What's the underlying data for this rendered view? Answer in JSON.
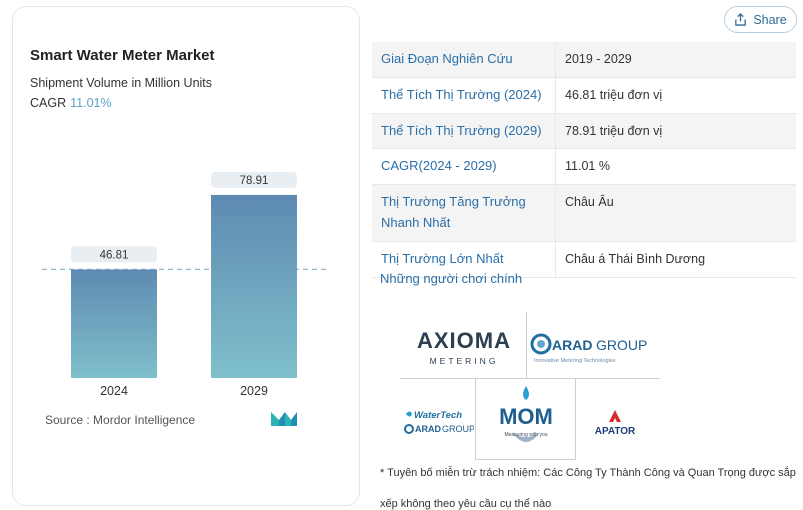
{
  "share": {
    "label": "Share",
    "icon": "share-icon"
  },
  "chart": {
    "title": "Smart Water Meter Market",
    "subtitle": "Shipment Volume in Million Units",
    "cagr_label": "CAGR",
    "cagr_value": "11.01%",
    "source": "Source : Mordor Intelligence",
    "bar_color_top": "#5e8ab1",
    "bar_color_bottom": "#7fc0cc"
  },
  "chart_data": {
    "type": "bar",
    "categories": [
      "2024",
      "2029"
    ],
    "values": [
      46.81,
      78.91
    ],
    "title": "Smart Water Meter Market",
    "subtitle": "Shipment Volume in Million Units",
    "xlabel": "",
    "ylabel": "",
    "ylim": [
      0,
      100
    ],
    "grid": false,
    "reference_line": 46.81
  },
  "info": {
    "rows": [
      {
        "key": "Giai Đoạn Nghiên Cứu",
        "value": "2019 - 2029"
      },
      {
        "key": "Thể Tích Thị Trường (2024)",
        "value": "46.81 triệu đơn vị"
      },
      {
        "key": "Thể Tích Thị Trường (2029)",
        "value": "78.91 triệu đơn vị"
      },
      {
        "key": "CAGR(2024 - 2029)",
        "value": "11.01 %"
      },
      {
        "key": "Thị Trường Tăng Trưởng Nhanh Nhất",
        "value": "Châu Âu"
      },
      {
        "key": "Thị Trường Lớn Nhất",
        "value": "Châu á Thái Bình Dương"
      }
    ],
    "key_players_label": "Những người chơi chính"
  },
  "players": {
    "axioma": {
      "name": "AXIOMA",
      "sub": "METERING"
    },
    "arad": {
      "name": "ARAD",
      "suffix": "GROUP",
      "tagline": "Innovative Metering Technologies"
    },
    "watertech": {
      "name": "WaterTech",
      "sub_a": "ARAD",
      "sub_b": "GROUP"
    },
    "mom": {
      "name": "MOM",
      "tagline": "Measuring with you"
    },
    "apator": {
      "name": "APATOR"
    }
  },
  "disclaimer": "* Tuyên bố miễn trừ trách nhiệm: Các Công Ty Thành Công và Quan Trọng được sắp xếp không theo yêu cầu cụ thể nào"
}
